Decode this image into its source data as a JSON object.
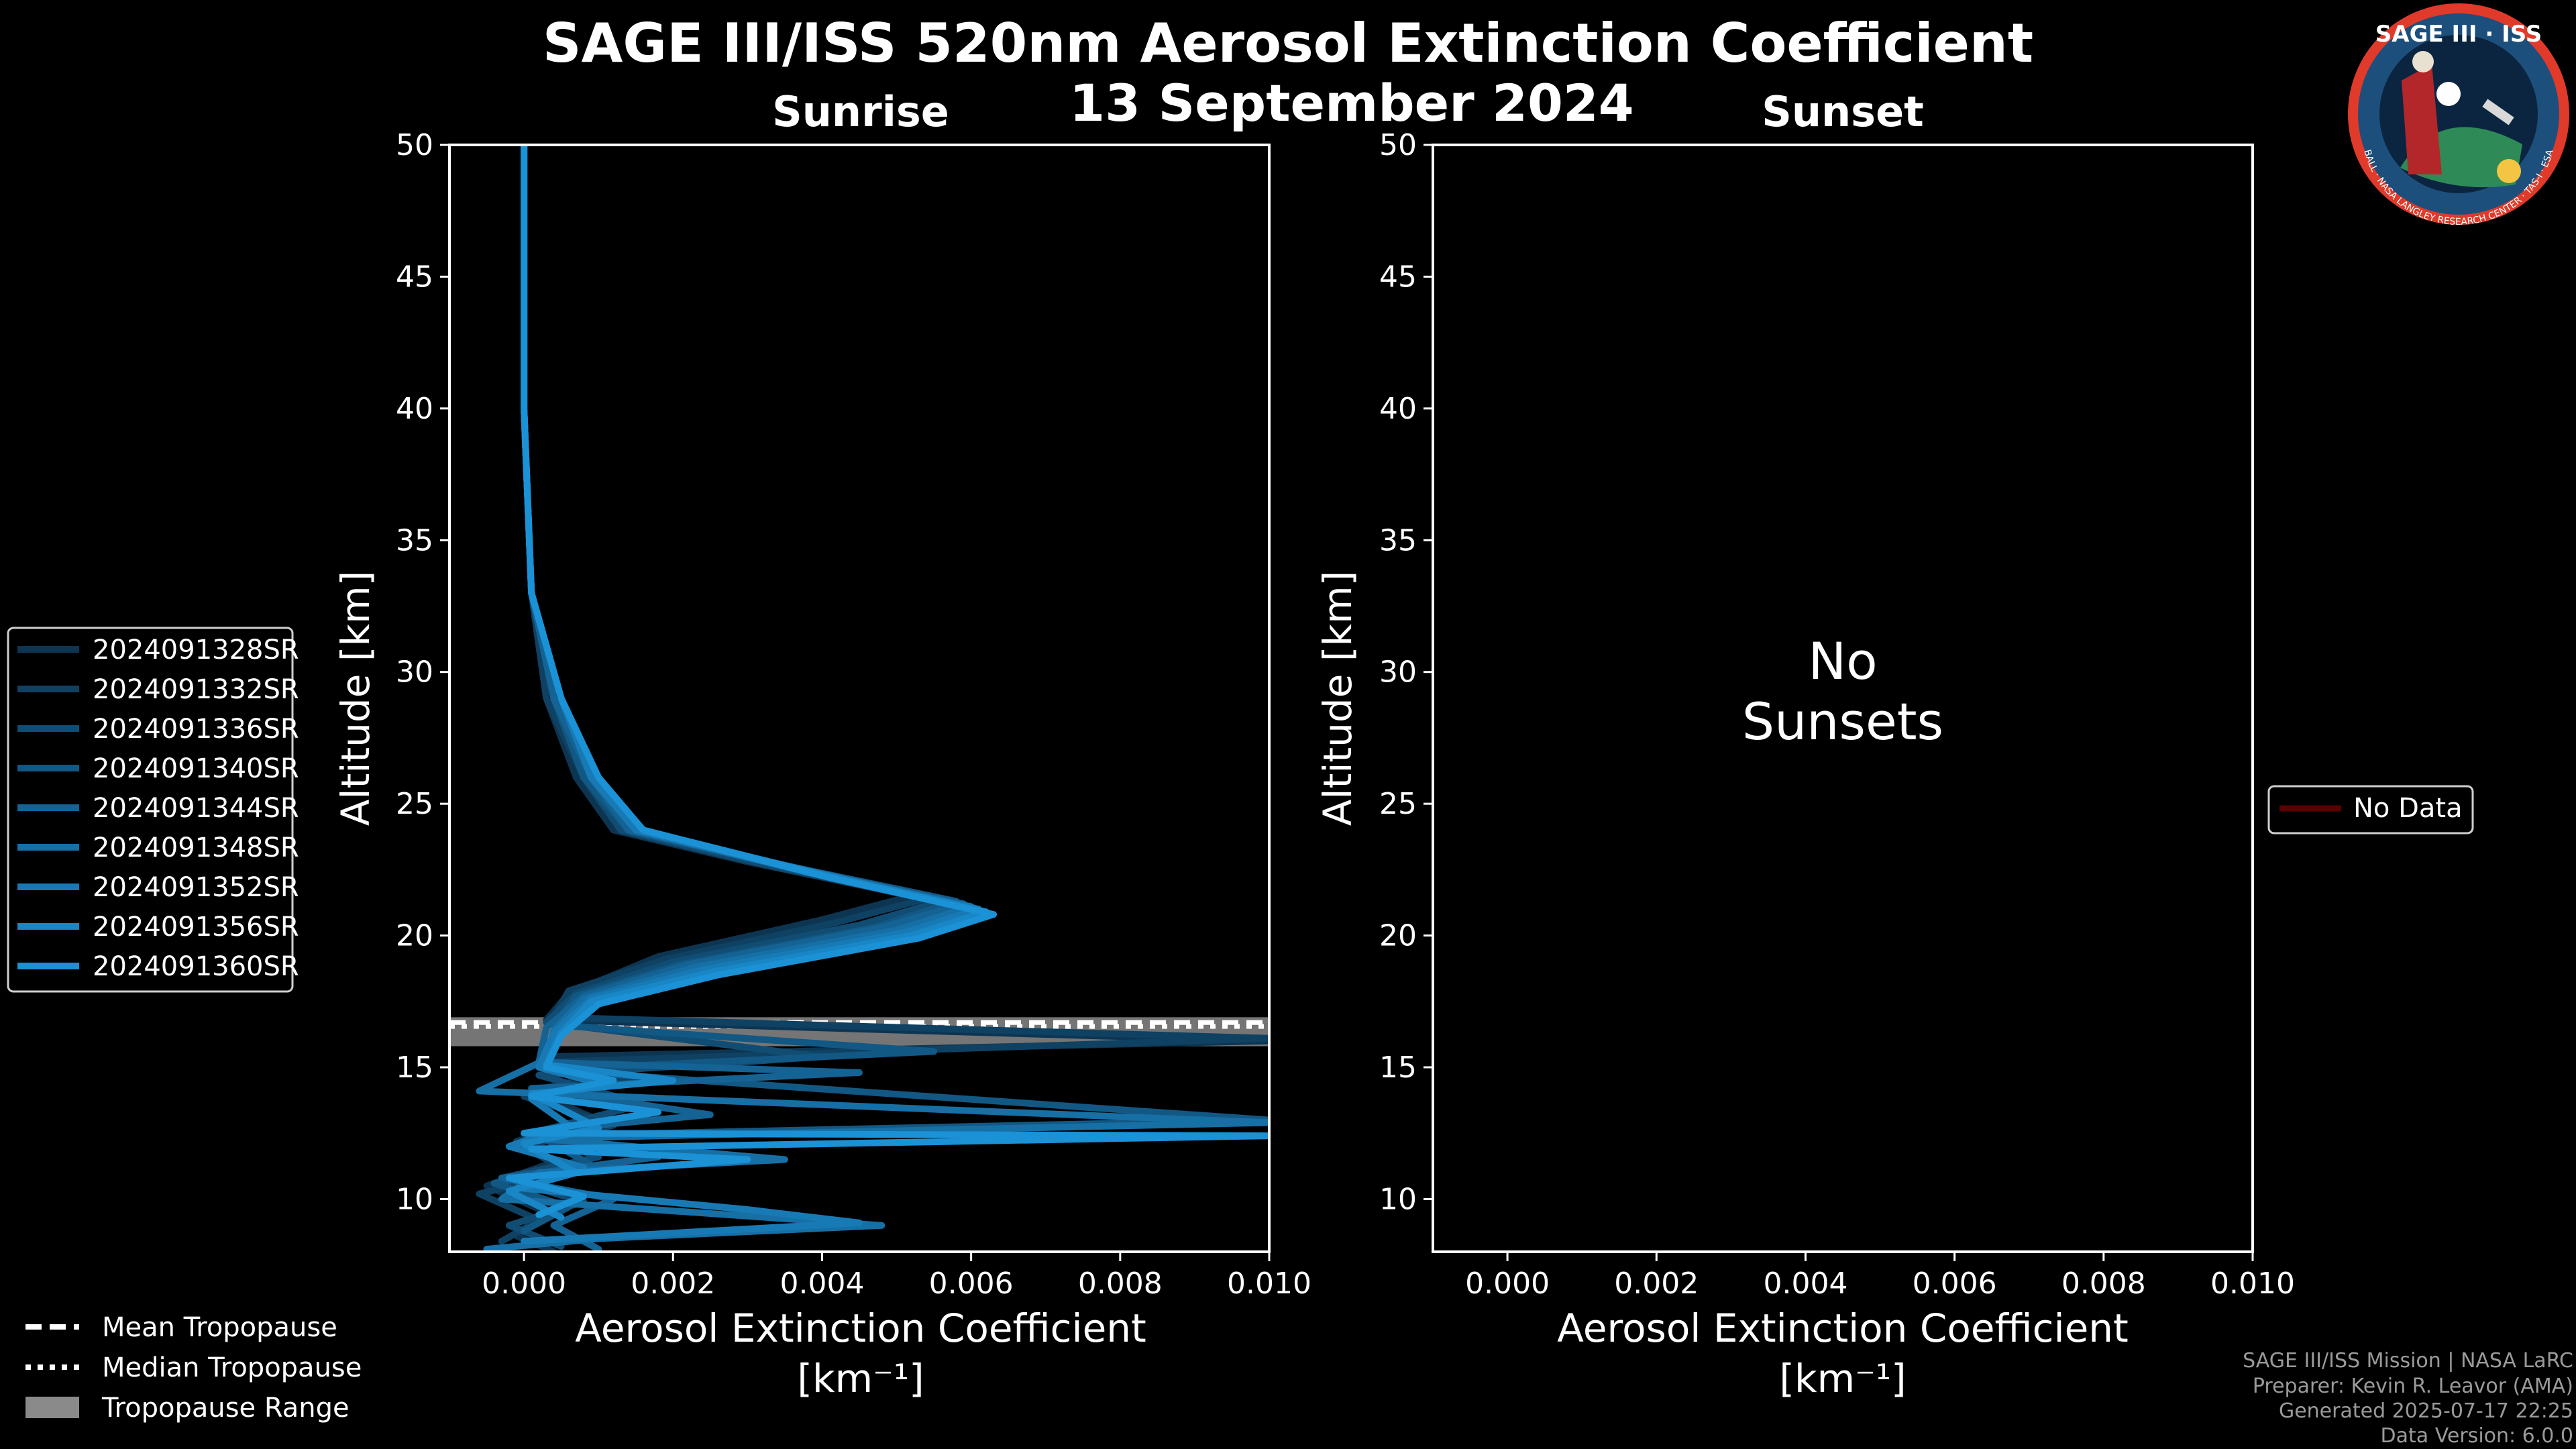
{
  "title": {
    "line1": "SAGE III/ISS 520nm Aerosol Extinction Coefficient",
    "line2": "13 September 2024"
  },
  "colors": {
    "background": "#000000",
    "series_dark": "#0d3552",
    "series_light": "#1b91d6",
    "tropopause_range": "#8a8a8a",
    "no_data": "#5a0000",
    "footer_text": "#9a9a9a"
  },
  "logo": {
    "text_top": "SAGE III · ISS",
    "ring_text": "BALL · NASA LANGLEY RESEARCH CENTER · TAS-I · ESA"
  },
  "legend": {
    "series": [
      "2024091328SR",
      "2024091332SR",
      "2024091336SR",
      "2024091340SR",
      "2024091344SR",
      "2024091348SR",
      "2024091352SR",
      "2024091356SR",
      "2024091360SR"
    ],
    "tropopause": [
      "Mean Tropopause",
      "Median Tropopause",
      "Tropopause Range"
    ],
    "no_data": "No Data"
  },
  "footer": {
    "line1": "SAGE III/ISS Mission | NASA LaRC",
    "line2": "Preparer: Kevin R. Leavor (AMA)",
    "line3": "Generated 2025-07-17 22:25",
    "line4": "Data Version: 6.0.0"
  },
  "chart_data": [
    {
      "type": "line",
      "title": "Sunrise",
      "xlabel": "Aerosol Extinction Coefficient",
      "xunit": "[km⁻¹]",
      "ylabel": "Altitude [km]",
      "xlim": [
        -0.001,
        0.01
      ],
      "ylim": [
        8,
        50
      ],
      "xticks": [
        "0.000",
        "0.002",
        "0.004",
        "0.006",
        "0.008",
        "0.010"
      ],
      "yticks": [
        "10",
        "15",
        "20",
        "25",
        "30",
        "35",
        "40",
        "45",
        "50"
      ],
      "tropopause": {
        "mean": 16.7,
        "median": 16.55,
        "range": [
          15.8,
          16.9
        ]
      },
      "series": [
        {
          "name": "2024091328SR",
          "points": [
            [
              0.0,
              50
            ],
            [
              0.0,
              40
            ],
            [
              0.0001,
              33
            ],
            [
              0.0003,
              29
            ],
            [
              0.0007,
              26
            ],
            [
              0.0012,
              24
            ],
            [
              0.003,
              22.8
            ],
            [
              0.0052,
              21.5
            ],
            [
              0.004,
              20.6
            ],
            [
              0.0018,
              19.2
            ],
            [
              0.0006,
              17.8
            ],
            [
              0.0003,
              16.8
            ],
            [
              0.01,
              16.0
            ],
            [
              0.0003,
              15.4
            ],
            [
              0.0012,
              14.8
            ],
            [
              0.0001,
              14.1
            ],
            [
              0.001,
              13.0
            ],
            [
              -0.0001,
              12.2
            ],
            [
              0.0004,
              11.4
            ],
            [
              -0.0005,
              10.5
            ],
            [
              0.0003,
              9.5
            ],
            [
              -0.0001,
              8.6
            ],
            [
              0.0004,
              8.0
            ]
          ]
        },
        {
          "name": "2024091332SR",
          "points": [
            [
              0.0,
              50
            ],
            [
              0.0,
              40
            ],
            [
              0.0001,
              33
            ],
            [
              0.0003,
              29
            ],
            [
              0.0008,
              26
            ],
            [
              0.0013,
              24
            ],
            [
              0.0032,
              22.7
            ],
            [
              0.0054,
              21.4
            ],
            [
              0.0042,
              20.5
            ],
            [
              0.0019,
              19.1
            ],
            [
              0.0006,
              17.9
            ],
            [
              0.0004,
              16.9
            ],
            [
              0.01,
              16.1
            ],
            [
              0.0004,
              15.2
            ],
            [
              0.0015,
              14.6
            ],
            [
              0.0,
              13.9
            ],
            [
              0.0012,
              12.8
            ],
            [
              0.0,
              12.0
            ],
            [
              0.0006,
              11.0
            ],
            [
              -0.0006,
              10.2
            ],
            [
              0.0002,
              9.2
            ],
            [
              -0.0003,
              8.4
            ]
          ]
        },
        {
          "name": "2024091336SR",
          "points": [
            [
              0.0,
              50
            ],
            [
              0.0,
              40
            ],
            [
              0.0001,
              33
            ],
            [
              0.0004,
              29
            ],
            [
              0.0008,
              26
            ],
            [
              0.0013,
              24
            ],
            [
              0.0034,
              22.6
            ],
            [
              0.0056,
              21.3
            ],
            [
              0.0045,
              20.4
            ],
            [
              0.002,
              19.0
            ],
            [
              0.0007,
              17.8
            ],
            [
              0.0003,
              16.7
            ],
            [
              0.004,
              15.4
            ],
            [
              0.0002,
              14.7
            ],
            [
              0.0016,
              13.6
            ],
            [
              0.0001,
              12.5
            ],
            [
              0.001,
              11.6
            ],
            [
              -0.0003,
              10.8
            ],
            [
              0.0008,
              9.9
            ],
            [
              -0.0002,
              9.0
            ],
            [
              0.0005,
              8.2
            ]
          ]
        },
        {
          "name": "2024091340SR",
          "points": [
            [
              0.0,
              50
            ],
            [
              0.0,
              40
            ],
            [
              0.0001,
              33
            ],
            [
              0.0004,
              29
            ],
            [
              0.0008,
              26
            ],
            [
              0.0014,
              24
            ],
            [
              0.0036,
              22.6
            ],
            [
              0.0058,
              21.3
            ],
            [
              0.0047,
              20.3
            ],
            [
              0.0021,
              18.9
            ],
            [
              0.0007,
              17.7
            ],
            [
              0.0004,
              16.6
            ],
            [
              0.0055,
              15.6
            ],
            [
              0.0003,
              14.9
            ],
            [
              0.01,
              13.0
            ],
            [
              0.0002,
              12.4
            ],
            [
              0.0009,
              11.3
            ],
            [
              -0.0004,
              10.6
            ],
            [
              0.0006,
              9.7
            ],
            [
              0.0,
              8.8
            ]
          ]
        },
        {
          "name": "2024091344SR",
          "points": [
            [
              0.0,
              50
            ],
            [
              0.0,
              40
            ],
            [
              0.0001,
              33
            ],
            [
              0.0004,
              29
            ],
            [
              0.0009,
              26
            ],
            [
              0.0014,
              24
            ],
            [
              0.0037,
              22.5
            ],
            [
              0.0059,
              21.2
            ],
            [
              0.0048,
              20.3
            ],
            [
              0.0022,
              18.9
            ],
            [
              0.0008,
              17.7
            ],
            [
              0.0003,
              16.5
            ],
            [
              0.0002,
              15.2
            ],
            [
              0.0045,
              14.8
            ],
            [
              0.0001,
              14.2
            ],
            [
              0.0025,
              13.2
            ],
            [
              0.0002,
              12.6
            ],
            [
              0.0018,
              11.6
            ],
            [
              -0.0003,
              10.8
            ],
            [
              0.0012,
              10.0
            ],
            [
              0.0004,
              9.0
            ],
            [
              0.001,
              8.1
            ]
          ]
        },
        {
          "name": "2024091348SR",
          "points": [
            [
              0.0,
              50
            ],
            [
              0.0,
              40
            ],
            [
              0.0001,
              33
            ],
            [
              0.0005,
              29
            ],
            [
              0.0009,
              26
            ],
            [
              0.0015,
              24
            ],
            [
              0.0038,
              22.4
            ],
            [
              0.006,
              21.1
            ],
            [
              0.005,
              20.2
            ],
            [
              0.0023,
              18.8
            ],
            [
              0.0008,
              17.6
            ],
            [
              0.0004,
              16.4
            ],
            [
              0.0003,
              15.3
            ],
            [
              -0.0006,
              14.1
            ],
            [
              0.01,
              12.9
            ],
            [
              0.0002,
              12.3
            ],
            [
              0.0035,
              11.5
            ],
            [
              0.0002,
              11.0
            ],
            [
              -0.0003,
              10.0
            ],
            [
              0.0048,
              9.0
            ],
            [
              0.001,
              8.5
            ],
            [
              -0.0005,
              8.1
            ]
          ]
        },
        {
          "name": "2024091352SR",
          "points": [
            [
              0.0,
              50
            ],
            [
              0.0,
              40
            ],
            [
              0.0001,
              33
            ],
            [
              0.0005,
              29
            ],
            [
              0.0009,
              26
            ],
            [
              0.0015,
              24
            ],
            [
              0.0039,
              22.4
            ],
            [
              0.0061,
              21.0
            ],
            [
              0.0051,
              20.1
            ],
            [
              0.0024,
              18.7
            ],
            [
              0.0009,
              17.6
            ],
            [
              0.0004,
              16.3
            ],
            [
              0.0002,
              15.0
            ],
            [
              0.001,
              14.4
            ],
            [
              0.0001,
              13.8
            ],
            [
              0.0006,
              12.8
            ],
            [
              -0.0002,
              12.0
            ],
            [
              0.0008,
              11.2
            ],
            [
              0.0,
              10.4
            ],
            [
              0.003,
              9.6
            ],
            [
              0.0045,
              9.1
            ],
            [
              0.0,
              8.4
            ]
          ]
        },
        {
          "name": "2024091356SR",
          "points": [
            [
              0.0,
              50
            ],
            [
              0.0,
              40
            ],
            [
              0.0001,
              33
            ],
            [
              0.0005,
              29
            ],
            [
              0.001,
              26
            ],
            [
              0.0016,
              24
            ],
            [
              0.004,
              22.3
            ],
            [
              0.0062,
              20.9
            ],
            [
              0.0052,
              20.0
            ],
            [
              0.0025,
              18.6
            ],
            [
              0.0009,
              17.5
            ],
            [
              0.0005,
              16.3
            ],
            [
              0.0003,
              15.1
            ],
            [
              0.002,
              14.5
            ],
            [
              0.0001,
              14.0
            ],
            [
              0.001,
              12.7
            ],
            [
              0.0,
              12.1
            ],
            [
              0.0007,
              11.0
            ],
            [
              -0.0002,
              10.3
            ],
            [
              0.0005,
              9.3
            ]
          ]
        },
        {
          "name": "2024091360SR",
          "points": [
            [
              0.0,
              50
            ],
            [
              0.0,
              40
            ],
            [
              0.0001,
              33
            ],
            [
              0.0005,
              29
            ],
            [
              0.001,
              26
            ],
            [
              0.0016,
              24
            ],
            [
              0.0041,
              22.2
            ],
            [
              0.0063,
              20.8
            ],
            [
              0.0053,
              19.9
            ],
            [
              0.0026,
              18.5
            ],
            [
              0.001,
              17.4
            ],
            [
              0.0005,
              16.2
            ],
            [
              0.0003,
              15.0
            ],
            [
              0.0012,
              14.5
            ],
            [
              0.0001,
              13.9
            ],
            [
              0.0018,
              13.3
            ],
            [
              0.0,
              12.5
            ],
            [
              0.01,
              12.4
            ],
            [
              0.0001,
              11.9
            ],
            [
              0.003,
              11.5
            ],
            [
              -0.0002,
              10.8
            ],
            [
              0.0008,
              10.1
            ],
            [
              0.0002,
              9.4
            ]
          ]
        }
      ]
    },
    {
      "type": "line",
      "title": "Sunset",
      "xlabel": "Aerosol Extinction Coefficient",
      "xunit": "[km⁻¹]",
      "ylabel": "Altitude [km]",
      "xlim": [
        -0.001,
        0.01
      ],
      "ylim": [
        8,
        50
      ],
      "xticks": [
        "0.000",
        "0.002",
        "0.004",
        "0.006",
        "0.008",
        "0.010"
      ],
      "yticks": [
        "10",
        "15",
        "20",
        "25",
        "30",
        "35",
        "40",
        "45",
        "50"
      ],
      "message_line1": "No",
      "message_line2": "Sunsets",
      "series": []
    }
  ]
}
